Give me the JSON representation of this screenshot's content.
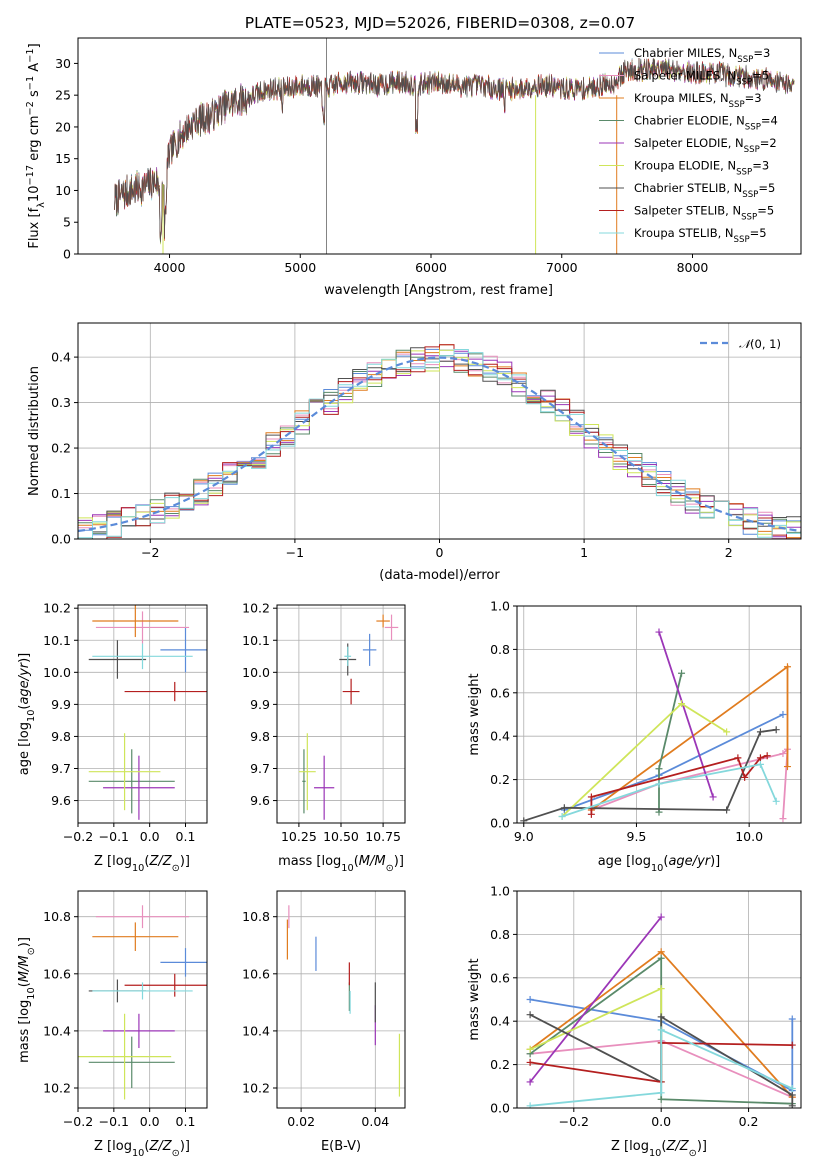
{
  "figure": {
    "title": "PLATE=0523, MJD=52026, FIBERID=0308, z=0.07"
  },
  "colors": {
    "Chabrier MILES": "#5b8bd9",
    "Salpeter MILES": "#e88fbd",
    "Kroupa MILES": "#e07c1f",
    "Chabrier ELODIE": "#5a8a6a",
    "Salpeter ELODIE": "#9b36b7",
    "Kroupa ELODIE": "#cfe55a",
    "Chabrier STELIB": "#505050",
    "Salpeter STELIB": "#b41f1f",
    "Kroupa STELIB": "#84d8dc",
    "gaussian": "#5b8bd9"
  },
  "chart_data": [
    {
      "id": "spectrum",
      "type": "line",
      "title": "PLATE=0523, MJD=52026, FIBERID=0308, z=0.07",
      "xlabel": "wavelength [Angstrom, rest frame]",
      "ylabel": "Flux [f_λ 10^-17 erg cm^-2 s^-1 A^-1]",
      "xlim": [
        3300,
        8830
      ],
      "ylim": [
        0,
        34
      ],
      "xticks": [
        4000,
        5000,
        6000,
        7000,
        8000
      ],
      "yticks": [
        0,
        5,
        10,
        15,
        20,
        25,
        30
      ],
      "grid": false,
      "legend_position": "top-right",
      "continuum": {
        "x": [
          3580,
          3700,
          3800,
          3900,
          3950,
          4000,
          4100,
          4200,
          4300,
          4400,
          4500,
          4600,
          4700,
          4800,
          4900,
          5000,
          5100,
          5200,
          5300,
          5400,
          5500,
          5600,
          5700,
          5800,
          5900,
          6000,
          6100,
          6200,
          6300,
          6400,
          6500,
          6600,
          6700,
          6800,
          6900,
          7000,
          7100,
          7200,
          7300,
          7400,
          7500,
          7600,
          7700,
          7800,
          7900,
          8000,
          8100,
          8200,
          8300,
          8400,
          8500,
          8600,
          8700,
          8780
        ],
        "y": [
          8.5,
          10,
          10.5,
          11.5,
          9,
          16,
          19,
          21,
          21.5,
          23,
          24,
          24.5,
          25.5,
          26,
          26,
          26.5,
          26.5,
          26,
          27,
          27,
          27,
          26.5,
          27,
          27,
          26.5,
          27,
          27,
          26.5,
          26.5,
          26.5,
          26,
          26,
          26,
          26.5,
          26.5,
          26,
          26,
          26,
          26.5,
          27,
          29,
          29,
          29,
          29,
          29,
          28.5,
          28.5,
          28.5,
          28,
          28,
          27.5,
          27.5,
          27,
          26.5
        ]
      },
      "series": [
        {
          "name": "Chabrier MILES, N_SSP=3",
          "label": "Chabrier MILES, N",
          "sub": "SSP",
          "tail": "=3"
        },
        {
          "name": "Salpeter MILES, N_SSP=5",
          "label": "Salpeter MILES, N",
          "sub": "SSP",
          "tail": "=5"
        },
        {
          "name": "Kroupa MILES, N_SSP=3",
          "label": "Kroupa MILES, N",
          "sub": "SSP",
          "tail": "=3"
        },
        {
          "name": "Chabrier ELODIE, N_SSP=4",
          "label": "Chabrier ELODIE, N",
          "sub": "SSP",
          "tail": "=4"
        },
        {
          "name": "Salpeter ELODIE, N_SSP=2",
          "label": "Salpeter ELODIE, N",
          "sub": "SSP",
          "tail": "=2"
        },
        {
          "name": "Kroupa ELODIE, N_SSP=3",
          "label": "Kroupa ELODIE, N",
          "sub": "SSP",
          "tail": "=3"
        },
        {
          "name": "Chabrier STELIB, N_SSP=5",
          "label": "Chabrier STELIB, N",
          "sub": "SSP",
          "tail": "=5"
        },
        {
          "name": "Salpeter STELIB, N_SSP=5",
          "label": "Salpeter STELIB, N",
          "sub": "SSP",
          "tail": "=5"
        },
        {
          "name": "Kroupa STELIB, N_SSP=5",
          "label": "Kroupa STELIB, N",
          "sub": "SSP",
          "tail": "=5"
        }
      ]
    },
    {
      "id": "residuals",
      "type": "area",
      "xlabel": "(data-model)/error",
      "ylabel": "Normed distribution",
      "xlim": [
        -2.5,
        2.5
      ],
      "ylim": [
        0,
        0.475
      ],
      "xticks": [
        -2,
        -1,
        0,
        1,
        2
      ],
      "yticks": [
        0.0,
        0.1,
        0.2,
        0.3,
        0.4
      ],
      "grid": true,
      "legend_position": "top-right",
      "legend": "N(0,1)",
      "bin_width": 0.1,
      "note": "step histograms of residuals, one per model, plus dashed standard normal curve"
    },
    {
      "id": "age_vs_Z",
      "type": "scatter",
      "xlabel": "Z [log10(Z/Z_sun)]",
      "ylabel": "age [log10(age/yr)]",
      "xlim": [
        -0.2,
        0.16
      ],
      "ylim": [
        9.53,
        10.21
      ],
      "xticks": [
        -0.2,
        -0.1,
        0.0,
        0.1
      ],
      "yticks": [
        9.6,
        9.7,
        9.8,
        9.9,
        10.0,
        10.1,
        10.2
      ],
      "grid": true,
      "points": [
        {
          "series": "Chabrier MILES",
          "x": 0.1,
          "xerr": 0.07,
          "y": 10.07,
          "yerr": 0.07
        },
        {
          "series": "Salpeter MILES",
          "x": -0.02,
          "xerr": 0.13,
          "y": 10.14,
          "yerr": 0.05
        },
        {
          "series": "Kroupa MILES",
          "x": -0.04,
          "xerr": 0.12,
          "y": 10.16,
          "yerr": 0.05
        },
        {
          "series": "Chabrier ELODIE",
          "x": -0.05,
          "xerr": 0.12,
          "y": 9.66,
          "yerr": 0.1
        },
        {
          "series": "Salpeter ELODIE",
          "x": -0.03,
          "xerr": 0.1,
          "y": 9.64,
          "yerr": 0.1
        },
        {
          "series": "Kroupa ELODIE",
          "x": -0.07,
          "xerr": 0.1,
          "y": 9.69,
          "yerr": 0.12
        },
        {
          "series": "Chabrier STELIB",
          "x": -0.09,
          "xerr": 0.08,
          "y": 10.04,
          "yerr": 0.06
        },
        {
          "series": "Salpeter STELIB",
          "x": 0.07,
          "xerr": 0.14,
          "y": 9.94,
          "yerr": 0.03
        },
        {
          "series": "Kroupa STELIB",
          "x": -0.02,
          "xerr": 0.14,
          "y": 10.05,
          "yerr": 0.04
        }
      ]
    },
    {
      "id": "age_vs_mass",
      "type": "scatter",
      "xlabel": "mass [log10(M/M_sun)]",
      "ylabel": "",
      "xlim": [
        10.12,
        10.88
      ],
      "ylim": [
        9.53,
        10.21
      ],
      "xticks": [
        10.25,
        10.5,
        10.75
      ],
      "yticks": [
        9.6,
        9.7,
        9.8,
        9.9,
        10.0,
        10.1,
        10.2
      ],
      "grid": true,
      "points": [
        {
          "series": "Chabrier MILES",
          "x": 10.67,
          "xerr": 0.04,
          "y": 10.07,
          "yerr": 0.05
        },
        {
          "series": "Salpeter MILES",
          "x": 10.8,
          "xerr": 0.04,
          "y": 10.14,
          "yerr": 0.04
        },
        {
          "series": "Kroupa MILES",
          "x": 10.75,
          "xerr": 0.04,
          "y": 10.16,
          "yerr": 0.02
        },
        {
          "series": "Chabrier ELODIE",
          "x": 10.28,
          "xerr": 0.01,
          "y": 9.66,
          "yerr": 0.1
        },
        {
          "series": "Salpeter ELODIE",
          "x": 10.4,
          "xerr": 0.06,
          "y": 9.64,
          "yerr": 0.1
        },
        {
          "series": "Kroupa ELODIE",
          "x": 10.3,
          "xerr": 0.05,
          "y": 9.69,
          "yerr": 0.12
        },
        {
          "series": "Chabrier STELIB",
          "x": 10.54,
          "xerr": 0.05,
          "y": 10.04,
          "yerr": 0.05
        },
        {
          "series": "Salpeter STELIB",
          "x": 10.56,
          "xerr": 0.05,
          "y": 9.94,
          "yerr": 0.04
        },
        {
          "series": "Kroupa STELIB",
          "x": 10.54,
          "xerr": 0.02,
          "y": 10.05,
          "yerr": 0.03
        }
      ]
    },
    {
      "id": "weight_vs_age",
      "type": "line",
      "xlabel": "age [log10(age/yr)]",
      "ylabel": "mass weight",
      "xlim": [
        8.97,
        10.23
      ],
      "ylim": [
        0,
        1
      ],
      "xticks": [
        9.0,
        9.5,
        10.0
      ],
      "yticks": [
        0.0,
        0.2,
        0.4,
        0.6,
        0.8,
        1.0
      ],
      "grid": true,
      "series": [
        {
          "name": "Chabrier MILES",
          "x": [
            9.18,
            9.6,
            10.15
          ],
          "y": [
            0.06,
            0.22,
            0.5
          ]
        },
        {
          "name": "Salpeter MILES",
          "x": [
            9.3,
            9.6,
            10.15,
            10.17,
            10.15
          ],
          "y": [
            0.06,
            0.18,
            0.32,
            0.34,
            0.02
          ]
        },
        {
          "name": "Kroupa MILES",
          "x": [
            9.3,
            10.17,
            10.17
          ],
          "y": [
            0.06,
            0.72,
            0.26
          ]
        },
        {
          "name": "Chabrier ELODIE",
          "x": [
            9.6,
            9.6,
            9.7
          ],
          "y": [
            0.05,
            0.25,
            0.69
          ]
        },
        {
          "name": "Salpeter ELODIE",
          "x": [
            9.6,
            9.84
          ],
          "y": [
            0.88,
            0.12
          ]
        },
        {
          "name": "Kroupa ELODIE",
          "x": [
            9.17,
            9.7,
            9.9
          ],
          "y": [
            0.03,
            0.55,
            0.42
          ]
        },
        {
          "name": "Chabrier STELIB",
          "x": [
            9.0,
            9.18,
            9.9,
            10.05,
            10.12
          ],
          "y": [
            0.01,
            0.07,
            0.06,
            0.42,
            0.43
          ]
        },
        {
          "name": "Salpeter STELIB",
          "x": [
            9.3,
            9.3,
            9.95,
            9.98,
            10.05,
            10.08
          ],
          "y": [
            0.04,
            0.12,
            0.3,
            0.21,
            0.3,
            0.31
          ]
        },
        {
          "name": "Kroupa STELIB",
          "x": [
            9.17,
            9.6,
            10.05,
            10.12
          ],
          "y": [
            0.03,
            0.18,
            0.27,
            0.1
          ]
        }
      ]
    },
    {
      "id": "mass_vs_Z",
      "type": "scatter",
      "xlabel": "Z [log10(Z/Z_sun)]",
      "ylabel": "mass [log10(M/M_sun)]",
      "xlim": [
        -0.2,
        0.16
      ],
      "ylim": [
        10.13,
        10.89
      ],
      "xticks": [
        -0.2,
        -0.1,
        0.0,
        0.1
      ],
      "yticks": [
        10.2,
        10.4,
        10.6,
        10.8
      ],
      "grid": true,
      "points": [
        {
          "series": "Chabrier MILES",
          "x": 0.1,
          "xerr": 0.07,
          "y": 10.64,
          "yerr": 0.05
        },
        {
          "series": "Salpeter MILES",
          "x": -0.02,
          "xerr": 0.13,
          "y": 10.8,
          "yerr": 0.04
        },
        {
          "series": "Kroupa MILES",
          "x": -0.04,
          "xerr": 0.12,
          "y": 10.73,
          "yerr": 0.05
        },
        {
          "series": "Chabrier ELODIE",
          "x": -0.05,
          "xerr": 0.12,
          "y": 10.29,
          "yerr": 0.09
        },
        {
          "series": "Salpeter ELODIE",
          "x": -0.03,
          "xerr": 0.1,
          "y": 10.4,
          "yerr": 0.06
        },
        {
          "series": "Kroupa ELODIE",
          "x": -0.07,
          "xerr": 0.13,
          "y": 10.31,
          "yerr": 0.15
        },
        {
          "series": "Chabrier STELIB",
          "x": -0.09,
          "xerr": 0.08,
          "y": 10.54,
          "yerr": 0.04
        },
        {
          "series": "Salpeter STELIB",
          "x": 0.07,
          "xerr": 0.14,
          "y": 10.56,
          "yerr": 0.04
        },
        {
          "series": "Kroupa STELIB",
          "x": -0.02,
          "xerr": 0.14,
          "y": 10.54,
          "yerr": 0.03
        }
      ]
    },
    {
      "id": "mass_vs_EBV",
      "type": "scatter",
      "xlabel": "E(B-V)",
      "ylabel": "",
      "xlim": [
        0.0135,
        0.048
      ],
      "ylim": [
        10.13,
        10.89
      ],
      "xticks": [
        0.02,
        0.04
      ],
      "yticks": [
        10.2,
        10.4,
        10.6,
        10.8
      ],
      "grid": true,
      "points": [
        {
          "series": "Chabrier MILES",
          "x": 0.024,
          "y": 10.67,
          "yerr": 0.06
        },
        {
          "series": "Salpeter MILES",
          "x": 0.0167,
          "y": 10.8,
          "yerr": 0.04
        },
        {
          "series": "Kroupa MILES",
          "x": 0.0163,
          "y": 10.72,
          "yerr": 0.07
        },
        {
          "series": "Chabrier ELODIE",
          "x": 0.033,
          "y": 10.52,
          "yerr": 0.05
        },
        {
          "series": "Salpeter ELODIE",
          "x": 0.04,
          "y": 10.42,
          "yerr": 0.07
        },
        {
          "series": "Kroupa ELODIE",
          "x": 0.0465,
          "y": 10.28,
          "yerr": 0.11
        },
        {
          "series": "Chabrier STELIB",
          "x": 0.04,
          "y": 10.5,
          "yerr": 0.07
        },
        {
          "series": "Salpeter STELIB",
          "x": 0.033,
          "y": 10.6,
          "yerr": 0.04
        },
        {
          "series": "Kroupa STELIB",
          "x": 0.0332,
          "y": 10.5,
          "yerr": 0.04
        }
      ]
    },
    {
      "id": "weight_vs_Z",
      "type": "line",
      "xlabel": "Z [log10(Z/Z_sun)]",
      "ylabel": "mass weight",
      "xlim": [
        -0.33,
        0.32
      ],
      "ylim": [
        0,
        1
      ],
      "xticks": [
        -0.2,
        0.0,
        0.2
      ],
      "yticks": [
        0.0,
        0.2,
        0.4,
        0.6,
        0.8,
        1.0
      ],
      "grid": true,
      "series": [
        {
          "name": "Chabrier MILES",
          "x": [
            -0.3,
            0.0,
            0.3,
            0.3
          ],
          "y": [
            0.5,
            0.4,
            0.08,
            0.41
          ]
        },
        {
          "name": "Salpeter MILES",
          "x": [
            -0.3,
            0.0,
            0.3
          ],
          "y": [
            0.25,
            0.31,
            0.05
          ]
        },
        {
          "name": "Kroupa MILES",
          "x": [
            -0.3,
            0.0,
            0.3
          ],
          "y": [
            0.27,
            0.72,
            0.05
          ]
        },
        {
          "name": "Chabrier ELODIE",
          "x": [
            -0.3,
            0.0,
            0.0,
            0.3
          ],
          "y": [
            0.25,
            0.69,
            0.04,
            0.02
          ]
        },
        {
          "name": "Salpeter ELODIE",
          "x": [
            -0.3,
            0.0
          ],
          "y": [
            0.12,
            0.88
          ]
        },
        {
          "name": "Kroupa ELODIE",
          "x": [
            -0.3,
            0.0,
            0.0
          ],
          "y": [
            0.27,
            0.55,
            0.12
          ]
        },
        {
          "name": "Chabrier STELIB",
          "x": [
            -0.3,
            0.0,
            0.0,
            0.3,
            0.3
          ],
          "y": [
            0.43,
            0.12,
            0.42,
            0.06,
            0.01
          ]
        },
        {
          "name": "Salpeter STELIB",
          "x": [
            -0.3,
            0.0,
            0.0,
            0.3
          ],
          "y": [
            0.21,
            0.12,
            0.3,
            0.29
          ]
        },
        {
          "name": "Kroupa STELIB",
          "x": [
            -0.3,
            0.0,
            0.0,
            0.3
          ],
          "y": [
            0.01,
            0.07,
            0.36,
            0.09
          ]
        }
      ]
    }
  ]
}
